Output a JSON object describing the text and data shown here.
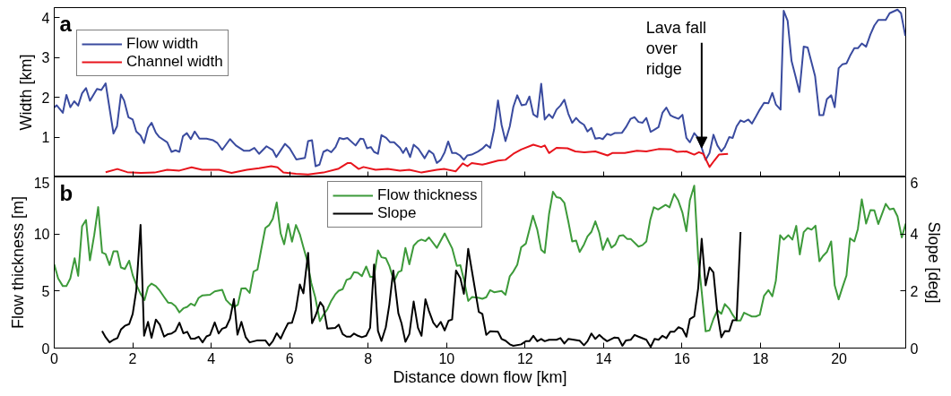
{
  "chart_data": [
    {
      "type": "line",
      "ylabel": "Width [km]",
      "xlim": [
        0,
        21.7
      ],
      "ylim": [
        0,
        4.25
      ],
      "xticks": [
        0,
        2,
        4,
        6,
        8,
        10,
        12,
        14,
        16,
        18,
        20
      ],
      "yticks": [
        {
          "value": 0,
          "label": null
        },
        1,
        2,
        3,
        4
      ],
      "tick_labels": "y",
      "grid": false,
      "legend": "top left",
      "annotations": [
        "a",
        {
          "text": "Lava fall\nover\nridge",
          "x": 16.5,
          "y": 0.73
        }
      ],
      "series": [
        {
          "name": "Flow width",
          "color": "#3a4b9f",
          "x": [
            0,
            0.06,
            0.22,
            0.31,
            0.41,
            0.51,
            0.61,
            0.71,
            0.81,
            0.91,
            1.09,
            1.2,
            1.31,
            1.51,
            1.6,
            1.7,
            1.78,
            1.89,
            2.0,
            2.09,
            2.2,
            2.29,
            2.39,
            2.48,
            2.59,
            2.68,
            2.88,
            2.99,
            3.09,
            3.19,
            3.28,
            3.38,
            3.48,
            3.58,
            3.7,
            3.88,
            4.05,
            4.16,
            4.28,
            4.48,
            4.63,
            4.83,
            4.98,
            5.1,
            5.22,
            5.41,
            5.57,
            5.66,
            5.88,
            6.0,
            6.17,
            6.39,
            6.47,
            6.57,
            6.66,
            6.76,
            6.86,
            6.96,
            7.06,
            7.17,
            7.27,
            7.37,
            7.47,
            7.68,
            7.8,
            7.88,
            7.97,
            8.07,
            8.15,
            8.25,
            8.34,
            8.46,
            8.56,
            8.66,
            8.81,
            8.89,
            8.97,
            9.07,
            9.16,
            9.28,
            9.44,
            9.55,
            9.66,
            9.75,
            9.85,
            9.95,
            10.04,
            10.14,
            10.24,
            10.34,
            10.44,
            10.53,
            10.64,
            10.8,
            10.91,
            11.01,
            11.11,
            11.21,
            11.31,
            11.4,
            11.5,
            11.61,
            11.7,
            11.8,
            11.91,
            12.02,
            12.11,
            12.21,
            12.31,
            12.41,
            12.5,
            12.61,
            12.7,
            12.8,
            12.9,
            13.0,
            13.1,
            13.2,
            13.3,
            13.39,
            13.5,
            13.59,
            13.69,
            13.79,
            13.89,
            13.98,
            14.09,
            14.18,
            14.28,
            14.47,
            14.57,
            14.69,
            14.79,
            14.89,
            14.99,
            15.09,
            15.2,
            15.3,
            15.4,
            15.5,
            15.6,
            15.7,
            15.8,
            15.91,
            16.01,
            16.11,
            16.2,
            16.31,
            16.41,
            16.5,
            16.6,
            16.7,
            16.8,
            16.9,
            17.0,
            17.09,
            17.2,
            17.29,
            17.39,
            17.49,
            17.58,
            17.69,
            17.78,
            17.88,
            17.98,
            18.09,
            18.2,
            18.3,
            18.39,
            18.51,
            18.59,
            18.69,
            18.79,
            18.89,
            18.99,
            19.1,
            19.2,
            19.3,
            19.39,
            19.5,
            19.6,
            19.69,
            19.8,
            19.89,
            19.99,
            20.09,
            20.19,
            20.28,
            20.39,
            20.48,
            20.58,
            20.69,
            20.8,
            20.9,
            21.0,
            21.19,
            21.29,
            21.49,
            21.58,
            21.69
          ],
          "values": [
            1.74,
            1.8,
            1.61,
            2.06,
            1.75,
            1.9,
            1.79,
            2.1,
            2.23,
            1.91,
            2.21,
            2.18,
            2.35,
            1.09,
            1.27,
            2.07,
            1.92,
            1.5,
            1.44,
            1.14,
            1.04,
            0.85,
            1.23,
            1.36,
            1.11,
            1.0,
            0.87,
            0.63,
            0.67,
            0.63,
            1.02,
            1.1,
            0.95,
            1.14,
            0.96,
            0.96,
            0.92,
            0.85,
            0.68,
            0.95,
            0.79,
            0.66,
            0.66,
            0.73,
            0.58,
            0.77,
            0.67,
            0.5,
            0.83,
            0.72,
            0.44,
            0.48,
            0.9,
            0.92,
            0.27,
            0.31,
            0.63,
            0.68,
            0.62,
            0.75,
            0.98,
            0.95,
            0.98,
            0.79,
            0.96,
            0.95,
            0.72,
            0.75,
            0.63,
            0.58,
            1.05,
            0.98,
            0.87,
            0.87,
            0.73,
            0.6,
            0.73,
            0.5,
            0.81,
            0.71,
            0.47,
            0.66,
            0.58,
            0.35,
            0.43,
            0.62,
            0.89,
            0.6,
            0.6,
            0.54,
            0.43,
            0.54,
            0.56,
            0.64,
            0.71,
            0.81,
            0.73,
            1.19,
            1.92,
            1.31,
            0.9,
            1.27,
            1.76,
            2.05,
            1.8,
            1.82,
            2.02,
            1.57,
            1.5,
            2.34,
            1.44,
            1.57,
            1.48,
            1.69,
            1.79,
            1.94,
            1.59,
            1.36,
            1.48,
            1.38,
            1.31,
            1.14,
            1.23,
            0.96,
            0.98,
            0.95,
            1.08,
            1.05,
            1.1,
            1.11,
            1.25,
            1.46,
            1.5,
            1.38,
            1.36,
            1.48,
            1.13,
            1.19,
            1.25,
            1.61,
            1.74,
            1.55,
            1.5,
            1.46,
            1.56,
            0.98,
            0.87,
            1.1,
            0.98,
            0.73,
            0.43,
            0.6,
            1.06,
            0.79,
            0.64,
            0.75,
            1.0,
            0.98,
            1.27,
            1.42,
            1.38,
            1.44,
            1.34,
            1.51,
            1.69,
            1.86,
            1.85,
            2.11,
            1.82,
            1.69,
            4.17,
            3.92,
            2.91,
            2.53,
            2.13,
            3.27,
            3.25,
            2.87,
            2.53,
            1.55,
            1.55,
            1.95,
            2.05,
            1.75,
            2.73,
            2.83,
            2.85,
            3.04,
            3.23,
            3.23,
            3.35,
            3.27,
            3.58,
            3.8,
            3.94,
            3.94,
            4.11,
            4.2,
            4.11,
            3.54
          ]
        },
        {
          "name": "Channel width",
          "color": "#e8141c",
          "x": [
            1.31,
            1.61,
            1.86,
            2.21,
            2.56,
            2.88,
            3.19,
            3.5,
            3.77,
            4.2,
            4.52,
            4.91,
            5.22,
            5.53,
            5.69,
            5.84,
            6.16,
            6.47,
            6.86,
            7.25,
            7.48,
            7.56,
            7.76,
            7.88,
            8.19,
            8.5,
            8.81,
            9.05,
            9.36,
            9.75,
            9.95,
            10.23,
            10.41,
            10.53,
            10.64,
            10.91,
            11.01,
            11.31,
            11.5,
            11.7,
            11.9,
            12.21,
            12.41,
            12.5,
            12.61,
            12.8,
            13.08,
            13.28,
            13.51,
            13.79,
            13.98,
            14.1,
            14.22,
            14.54,
            14.85,
            15.09,
            15.4,
            15.72,
            15.87,
            16.11,
            16.31,
            16.43,
            16.54,
            16.7,
            16.82,
            16.94,
            17.17
          ],
          "values": [
            0.12,
            0.2,
            0.12,
            0.1,
            0.11,
            0.18,
            0.16,
            0.24,
            0.18,
            0.18,
            0.1,
            0.18,
            0.22,
            0.27,
            0.24,
            0.11,
            0.08,
            0.06,
            0.11,
            0.21,
            0.35,
            0.35,
            0.2,
            0.25,
            0.18,
            0.2,
            0.16,
            0.18,
            0.11,
            0.18,
            0.2,
            0.14,
            0.34,
            0.27,
            0.35,
            0.31,
            0.33,
            0.41,
            0.43,
            0.58,
            0.69,
            0.81,
            0.75,
            0.79,
            0.6,
            0.73,
            0.72,
            0.64,
            0.62,
            0.64,
            0.58,
            0.54,
            0.6,
            0.6,
            0.66,
            0.64,
            0.7,
            0.69,
            0.63,
            0.64,
            0.56,
            0.62,
            0.58,
            0.25,
            0.41,
            0.56,
            0.58
          ]
        }
      ]
    },
    {
      "type": "line",
      "xlabel": "Distance down flow [km]",
      "ylabel": "Flow thickness [m]",
      "y2label": "Slope [deg]",
      "xlim": [
        0,
        21.7
      ],
      "ylim": [
        0,
        15
      ],
      "y2lim": [
        0,
        6
      ],
      "xticks": [
        0,
        2,
        4,
        6,
        8,
        10,
        12,
        14,
        16,
        18,
        20
      ],
      "yticks": [
        0,
        5,
        10,
        15
      ],
      "y2ticks": [
        0,
        2,
        4,
        6
      ],
      "grid": false,
      "legend": "top",
      "annotations": [
        "b"
      ],
      "series": [
        {
          "name": "Flow thickness",
          "color": "#3d9a3a",
          "x": [
            0,
            0.1,
            0.22,
            0.31,
            0.41,
            0.52,
            0.61,
            0.71,
            0.81,
            0.91,
            1.02,
            1.12,
            1.22,
            1.31,
            1.41,
            1.51,
            1.61,
            1.7,
            1.8,
            1.91,
            2.0,
            2.09,
            2.2,
            2.3,
            2.39,
            2.48,
            2.59,
            2.69,
            2.8,
            2.9,
            2.99,
            3.09,
            3.19,
            3.29,
            3.39,
            3.48,
            3.58,
            3.68,
            3.78,
            3.97,
            4.09,
            4.28,
            4.38,
            4.48,
            4.58,
            4.68,
            4.77,
            4.88,
            4.98,
            5.08,
            5.18,
            5.27,
            5.38,
            5.48,
            5.57,
            5.67,
            5.77,
            5.86,
            5.96,
            6.06,
            6.16,
            6.26,
            6.35,
            6.45,
            6.55,
            6.65,
            6.77,
            6.86,
            6.96,
            7.05,
            7.16,
            7.25,
            7.35,
            7.45,
            7.55,
            7.64,
            7.74,
            7.84,
            7.95,
            8.05,
            8.15,
            8.25,
            8.34,
            8.45,
            8.54,
            8.66,
            8.77,
            8.85,
            8.95,
            9.05,
            9.16,
            9.27,
            9.36,
            9.46,
            9.55,
            9.75,
            9.95,
            10.14,
            10.26,
            10.35,
            10.45,
            10.55,
            10.65,
            10.83,
            10.91,
            11.01,
            11.11,
            11.21,
            11.4,
            11.5,
            11.61,
            11.7,
            11.8,
            11.9,
            12.02,
            12.2,
            12.31,
            12.41,
            12.5,
            12.61,
            12.71,
            12.8,
            12.9,
            13.0,
            13.1,
            13.2,
            13.3,
            13.39,
            13.5,
            13.59,
            13.69,
            13.79,
            13.89,
            13.98,
            14.1,
            14.2,
            14.3,
            14.4,
            14.5,
            14.6,
            14.69,
            14.89,
            14.99,
            15.09,
            15.19,
            15.28,
            15.39,
            15.58,
            15.68,
            15.8,
            15.9,
            16.01,
            16.11,
            16.2,
            16.31,
            16.41,
            16.5,
            16.6,
            16.7,
            16.8,
            16.9,
            17.0,
            17.09,
            17.2,
            17.29,
            17.39,
            17.49,
            17.58,
            17.69,
            17.78,
            17.88,
            17.98,
            18.09,
            18.2,
            18.3,
            18.39,
            18.5,
            18.59,
            18.71,
            18.81,
            18.91,
            19.0,
            19.1,
            19.2,
            19.3,
            19.4,
            19.5,
            19.59,
            19.69,
            19.8,
            19.89,
            19.99,
            20.09,
            20.19,
            20.28,
            20.39,
            20.48,
            20.58,
            20.69,
            20.8,
            20.9,
            21.0,
            21.19,
            21.29,
            21.39,
            21.49,
            21.6,
            21.7
          ],
          "values": [
            7.34,
            6.11,
            5.43,
            5.43,
            6.11,
            7.88,
            6.33,
            10.68,
            11.22,
            7.69,
            9.92,
            12.36,
            8.37,
            8.23,
            7.28,
            8.48,
            8.48,
            7.07,
            6.93,
            7.66,
            6.39,
            5.57,
            4.76,
            4.21,
            5.35,
            5.65,
            5.43,
            5.03,
            4.48,
            3.99,
            3.94,
            3.67,
            3.13,
            3.48,
            3.61,
            3.89,
            3.72,
            4.4,
            4.62,
            4.67,
            4.97,
            5.11,
            4.21,
            3.86,
            3.59,
            3.8,
            5.22,
            5.24,
            4.84,
            6.71,
            6.88,
            8.56,
            10.52,
            10.79,
            11.33,
            12.77,
            10.05,
            9.1,
            10.87,
            9.32,
            10.79,
            9.97,
            8.83,
            7.61,
            5.71,
            4.48,
            2.36,
            2.91,
            3.4,
            4.08,
            4.7,
            5.03,
            5.16,
            5.98,
            6.11,
            6.66,
            6.6,
            6.3,
            7.15,
            6.25,
            6.25,
            8.56,
            7.96,
            7.88,
            7.2,
            5.84,
            6.66,
            6.79,
            8.78,
            7.34,
            8.97,
            9.38,
            9.51,
            9.38,
            9.7,
            8.78,
            10.05,
            8.75,
            7.2,
            7.26,
            5.84,
            4.13,
            4.48,
            4.4,
            4.32,
            4.46,
            5.08,
            4.89,
            5.0,
            4.67,
            6.3,
            6.71,
            7.31,
            8.83,
            9.16,
            11.6,
            10.38,
            8.61,
            8.34,
            11.74,
            13.7,
            13.23,
            13.15,
            12.74,
            11.11,
            9.35,
            9.43,
            8.42,
            9.08,
            9.78,
            10.19,
            11.11,
            10.11,
            8.61,
            9.62,
            8.8,
            9.08,
            9.84,
            9.89,
            9.57,
            9.57,
            8.89,
            9.02,
            9.35,
            11.25,
            12.34,
            12.15,
            12.55,
            12.34,
            13.51,
            12.96,
            11.87,
            10.24,
            12.96,
            14.24,
            7.93,
            4.95,
            1.47,
            1.55,
            2.55,
            3.32,
            3.0,
            3.86,
            3.45,
            2.91,
            2.42,
            2.42,
            3.1,
            2.91,
            2.77,
            2.77,
            2.91,
            4.59,
            5.08,
            4.54,
            5.9,
            9.89,
            9.51,
            9.89,
            9.51,
            10.71,
            8.21,
            10.16,
            10.52,
            10.38,
            10.73,
            7.61,
            8.07,
            8.42,
            9.35,
            5.49,
            4.27,
            5.35,
            6.36,
            9.62,
            9.35,
            10.43,
            13.04,
            10.92,
            12.09,
            12.07,
            10.87,
            12.64,
            12.15,
            12.23,
            11.55,
            9.7,
            10.92
          ]
        },
        {
          "name": "Slope",
          "color": "#000000",
          "axis": "y2",
          "x": [
            1.22,
            1.31,
            1.41,
            1.51,
            1.61,
            1.7,
            1.8,
            1.91,
            2.0,
            2.09,
            2.2,
            2.29,
            2.39,
            2.48,
            2.59,
            2.69,
            2.8,
            2.9,
            2.99,
            3.09,
            3.19,
            3.29,
            3.39,
            3.48,
            3.58,
            3.68,
            3.78,
            3.88,
            3.97,
            4.09,
            4.19,
            4.28,
            4.38,
            4.48,
            4.58,
            4.67,
            4.77,
            4.88,
            4.98,
            5.18,
            5.38,
            5.48,
            5.57,
            5.67,
            5.77,
            5.86,
            5.96,
            6.06,
            6.16,
            6.26,
            6.35,
            6.47,
            6.57,
            6.66,
            6.78,
            6.86,
            6.96,
            7.16,
            7.25,
            7.35,
            7.45,
            7.55,
            7.64,
            7.74,
            7.84,
            7.95,
            8.05,
            8.15,
            8.25,
            8.34,
            8.45,
            8.54,
            8.64,
            8.77,
            8.85,
            8.95,
            9.05,
            9.16,
            9.27,
            9.36,
            9.46,
            9.55,
            9.66,
            9.75,
            9.85,
            9.95,
            10.05,
            10.14,
            10.24,
            10.35,
            10.44,
            10.55,
            10.82,
            10.91,
            11.01,
            11.11,
            11.31,
            11.4,
            11.5,
            11.61,
            11.7,
            11.9,
            12.02,
            12.11,
            12.21,
            12.31,
            12.41,
            12.5,
            12.61,
            12.8,
            12.9,
            13.0,
            13.1,
            13.39,
            13.5,
            13.59,
            13.69,
            13.79,
            13.89,
            13.98,
            14.09,
            14.28,
            14.38,
            14.48,
            14.57,
            14.69,
            14.79,
            14.89,
            15.09,
            15.2,
            15.3,
            15.4,
            15.5,
            15.6,
            15.7,
            15.8,
            15.91,
            16.01,
            16.11,
            16.2,
            16.31,
            16.41,
            16.5,
            16.6,
            16.7,
            16.8,
            16.9,
            17.0,
            17.09,
            17.2,
            17.29,
            17.39,
            17.49
          ],
          "values": [
            0.6,
            0.38,
            0.2,
            0.29,
            0.35,
            0.65,
            0.78,
            0.84,
            1.2,
            2.01,
            4.32,
            0.43,
            0.92,
            0.36,
            1.0,
            0.82,
            0.4,
            0.49,
            0.51,
            0.6,
            0.89,
            0.52,
            0.57,
            0.33,
            0.33,
            0.4,
            0.2,
            0.41,
            0.46,
            0.9,
            0.51,
            0.68,
            0.73,
            1.03,
            1.72,
            0.47,
            0.92,
            0.38,
            0.2,
            0.27,
            0.27,
            0.09,
            0.24,
            0.52,
            0.33,
            0.6,
            0.87,
            0.89,
            1.36,
            2.23,
            1.92,
            3.34,
            0.87,
            1.14,
            1.61,
            1.45,
            0.68,
            0.71,
            0.82,
            0.49,
            0.4,
            0.4,
            0.51,
            0.43,
            0.38,
            0.43,
            0.71,
            2.93,
            0.6,
            0.25,
            0.73,
            1.52,
            2.72,
            1.22,
            0.87,
            0.22,
            0.49,
            1.63,
            0.71,
            0.43,
            1.71,
            1.3,
            0.89,
            0.73,
            0.92,
            0.62,
            0.96,
            1.0,
            2.72,
            2.45,
            1.9,
            3.48,
            1.27,
            1.2,
            0.46,
            0.59,
            0.57,
            0.32,
            0.26,
            0.13,
            0.08,
            0.13,
            0.24,
            0.24,
            0.43,
            0.24,
            0.32,
            0.24,
            0.29,
            0.29,
            0.35,
            0.16,
            0.32,
            0.26,
            0.1,
            0.24,
            0.51,
            0.32,
            0.46,
            0.35,
            0.24,
            0.37,
            0.35,
            0.08,
            0.27,
            0.29,
            0.46,
            0.4,
            0.29,
            0.04,
            0.32,
            0.29,
            0.43,
            0.35,
            0.57,
            0.57,
            0.73,
            0.67,
            0.4,
            1.02,
            1.11,
            2.09,
            3.83,
            2.2,
            2.83,
            2.65,
            1.22,
            0.38,
            0.6,
            0.59,
            0.97,
            0.98,
            4.07
          ]
        }
      ]
    }
  ]
}
